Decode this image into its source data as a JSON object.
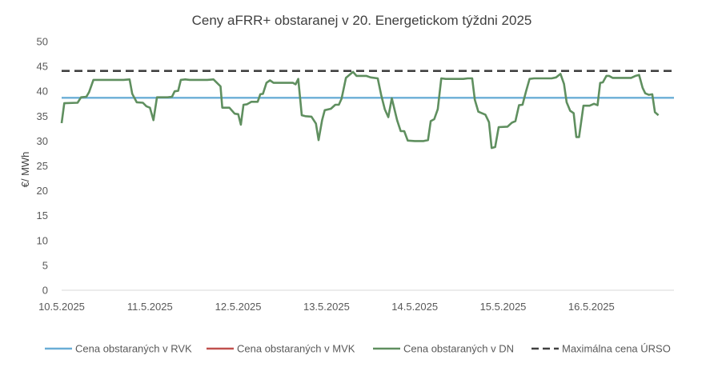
{
  "chart_data": {
    "type": "line",
    "title": "Ceny aFRR+ obstaranej v 20. Energetickom týždni 2025",
    "ylabel": "€/ MWh",
    "xlabel": "",
    "ylim": [
      0,
      50
    ],
    "yticks": [
      "0",
      "5",
      "10",
      "15",
      "20",
      "25",
      "30",
      "35",
      "40",
      "45",
      "50"
    ],
    "xticks": [
      "10.5.2025",
      "11.5.2025",
      "12.5.2025",
      "13.5.2025",
      "14.5.2025",
      "15.5.2025",
      "16.5.2025"
    ],
    "grid": false,
    "legend_position": "bottom",
    "x_day_start": "10.5.2025",
    "series": [
      {
        "name": "Cena obstaraných v RVK",
        "color": "#6aaed6",
        "style": "solid",
        "values": [
          38.7,
          38.7
        ]
      },
      {
        "name": "Cena obstaraných v MVK",
        "color": "#c0504d",
        "style": "solid",
        "values": []
      },
      {
        "name": "Cena obstaraných v DN",
        "color": "#5f8f5f",
        "style": "solid",
        "points": [
          [
            0.0,
            33.6
          ],
          [
            0.03,
            37.6
          ],
          [
            0.18,
            37.7
          ],
          [
            0.22,
            38.8
          ],
          [
            0.28,
            38.9
          ],
          [
            0.31,
            39.8
          ],
          [
            0.36,
            42.3
          ],
          [
            0.6,
            42.3
          ],
          [
            0.7,
            42.3
          ],
          [
            0.77,
            42.4
          ],
          [
            0.8,
            39.5
          ],
          [
            0.85,
            37.8
          ],
          [
            0.92,
            37.7
          ],
          [
            0.96,
            37.0
          ],
          [
            1.0,
            36.7
          ],
          [
            1.04,
            34.2
          ],
          [
            1.08,
            38.8
          ],
          [
            1.2,
            38.8
          ],
          [
            1.25,
            38.9
          ],
          [
            1.28,
            40.0
          ],
          [
            1.32,
            40.1
          ],
          [
            1.35,
            42.3
          ],
          [
            1.4,
            42.4
          ],
          [
            1.45,
            42.3
          ],
          [
            1.65,
            42.3
          ],
          [
            1.72,
            42.4
          ],
          [
            1.8,
            41.0
          ],
          [
            1.82,
            36.7
          ],
          [
            1.9,
            36.7
          ],
          [
            1.96,
            35.5
          ],
          [
            2.0,
            35.4
          ],
          [
            2.03,
            33.3
          ],
          [
            2.06,
            37.3
          ],
          [
            2.1,
            37.4
          ],
          [
            2.15,
            37.9
          ],
          [
            2.22,
            37.9
          ],
          [
            2.25,
            39.4
          ],
          [
            2.28,
            39.5
          ],
          [
            2.32,
            41.7
          ],
          [
            2.36,
            42.2
          ],
          [
            2.4,
            41.7
          ],
          [
            2.55,
            41.7
          ],
          [
            2.62,
            41.7
          ],
          [
            2.65,
            41.4
          ],
          [
            2.68,
            42.5
          ],
          [
            2.72,
            35.2
          ],
          [
            2.76,
            35.0
          ],
          [
            2.83,
            34.9
          ],
          [
            2.88,
            33.5
          ],
          [
            2.91,
            30.2
          ],
          [
            2.95,
            34.2
          ],
          [
            2.98,
            36.2
          ],
          [
            3.05,
            36.5
          ],
          [
            3.1,
            37.3
          ],
          [
            3.14,
            37.3
          ],
          [
            3.17,
            38.5
          ],
          [
            3.22,
            42.7
          ],
          [
            3.3,
            43.9
          ],
          [
            3.34,
            43.1
          ],
          [
            3.45,
            43.1
          ],
          [
            3.5,
            42.8
          ],
          [
            3.58,
            42.6
          ],
          [
            3.62,
            39.2
          ],
          [
            3.66,
            36.4
          ],
          [
            3.7,
            34.8
          ],
          [
            3.74,
            38.6
          ],
          [
            3.8,
            34.2
          ],
          [
            3.84,
            32.0
          ],
          [
            3.88,
            32.0
          ],
          [
            3.92,
            30.1
          ],
          [
            4.0,
            30.0
          ],
          [
            4.1,
            30.0
          ],
          [
            4.15,
            30.2
          ],
          [
            4.18,
            34.0
          ],
          [
            4.22,
            34.4
          ],
          [
            4.26,
            36.4
          ],
          [
            4.3,
            42.6
          ],
          [
            4.35,
            42.5
          ],
          [
            4.55,
            42.5
          ],
          [
            4.6,
            42.6
          ],
          [
            4.65,
            42.6
          ],
          [
            4.68,
            38.3
          ],
          [
            4.72,
            35.9
          ],
          [
            4.8,
            35.3
          ],
          [
            4.84,
            33.8
          ],
          [
            4.87,
            28.6
          ],
          [
            4.91,
            28.8
          ],
          [
            4.95,
            32.8
          ],
          [
            5.05,
            32.9
          ],
          [
            5.1,
            33.7
          ],
          [
            5.14,
            34.0
          ],
          [
            5.18,
            37.2
          ],
          [
            5.22,
            37.3
          ],
          [
            5.26,
            40.0
          ],
          [
            5.3,
            42.5
          ],
          [
            5.35,
            42.6
          ],
          [
            5.55,
            42.6
          ],
          [
            5.6,
            42.8
          ],
          [
            5.65,
            43.5
          ],
          [
            5.69,
            41.5
          ],
          [
            5.72,
            37.8
          ],
          [
            5.76,
            36.1
          ],
          [
            5.8,
            35.6
          ],
          [
            5.83,
            30.8
          ],
          [
            5.86,
            30.8
          ],
          [
            5.91,
            37.1
          ],
          [
            5.98,
            37.1
          ],
          [
            6.03,
            37.5
          ],
          [
            6.07,
            37.2
          ],
          [
            6.1,
            41.7
          ],
          [
            6.13,
            41.8
          ],
          [
            6.17,
            43.1
          ],
          [
            6.2,
            43.1
          ],
          [
            6.24,
            42.7
          ],
          [
            6.35,
            42.7
          ],
          [
            6.45,
            42.7
          ],
          [
            6.5,
            43.1
          ],
          [
            6.54,
            43.3
          ],
          [
            6.58,
            40.7
          ],
          [
            6.61,
            39.6
          ],
          [
            6.65,
            39.3
          ],
          [
            6.69,
            39.4
          ],
          [
            6.72,
            35.8
          ],
          [
            6.76,
            35.2
          ]
        ]
      },
      {
        "name": "Maximálna cena ÚRSO",
        "color": "#404040",
        "style": "dashed",
        "values": [
          44.1,
          44.1
        ]
      }
    ]
  }
}
